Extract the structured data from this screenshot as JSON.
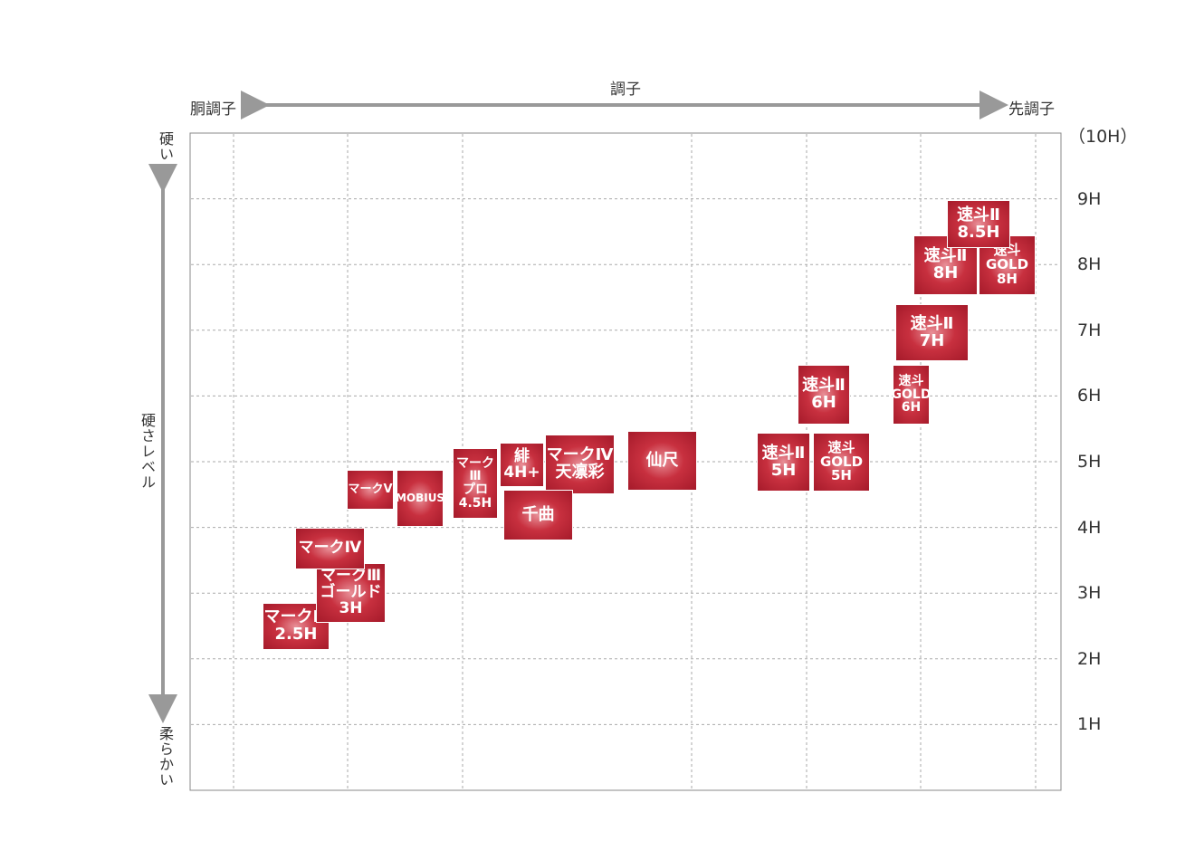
{
  "header": {
    "title": "調子",
    "left": "胴調子",
    "right": "先調子"
  },
  "y_axis": {
    "top": "硬い",
    "middle": "硬さレベル",
    "bottom": "柔らかい",
    "ticks": [
      "1H",
      "2H",
      "3H",
      "4H",
      "5H",
      "6H",
      "7H",
      "8H",
      "9H",
      "（10H）"
    ]
  },
  "nodes": [
    {
      "lines": [
        "マークⅢ",
        "2.5H"
      ]
    },
    {
      "lines": [
        "マークⅢ",
        "ゴールド",
        "3H"
      ]
    },
    {
      "lines": [
        "マークⅣ"
      ]
    },
    {
      "lines": [
        "マークⅤ"
      ]
    },
    {
      "lines": [
        "MOBIUS"
      ]
    },
    {
      "lines": [
        "マークⅢ",
        "プロ",
        "4.5H"
      ]
    },
    {
      "lines": [
        "緋",
        "4H+"
      ]
    },
    {
      "lines": [
        "マークⅣ",
        "天凛彩"
      ]
    },
    {
      "lines": [
        "千曲"
      ]
    },
    {
      "lines": [
        "仙尺"
      ]
    },
    {
      "lines": [
        "速斗Ⅱ",
        "5H"
      ]
    },
    {
      "lines": [
        "速斗GOLD",
        "5H"
      ]
    },
    {
      "lines": [
        "速斗Ⅱ",
        "6H"
      ]
    },
    {
      "lines": [
        "速斗",
        "GOLD",
        "6H"
      ]
    },
    {
      "lines": [
        "速斗Ⅱ",
        "7H"
      ]
    },
    {
      "lines": [
        "速斗Ⅱ",
        "8H"
      ]
    },
    {
      "lines": [
        "速斗GOLD",
        "8H"
      ]
    },
    {
      "lines": [
        "速斗Ⅱ",
        "8.5H"
      ]
    }
  ]
}
